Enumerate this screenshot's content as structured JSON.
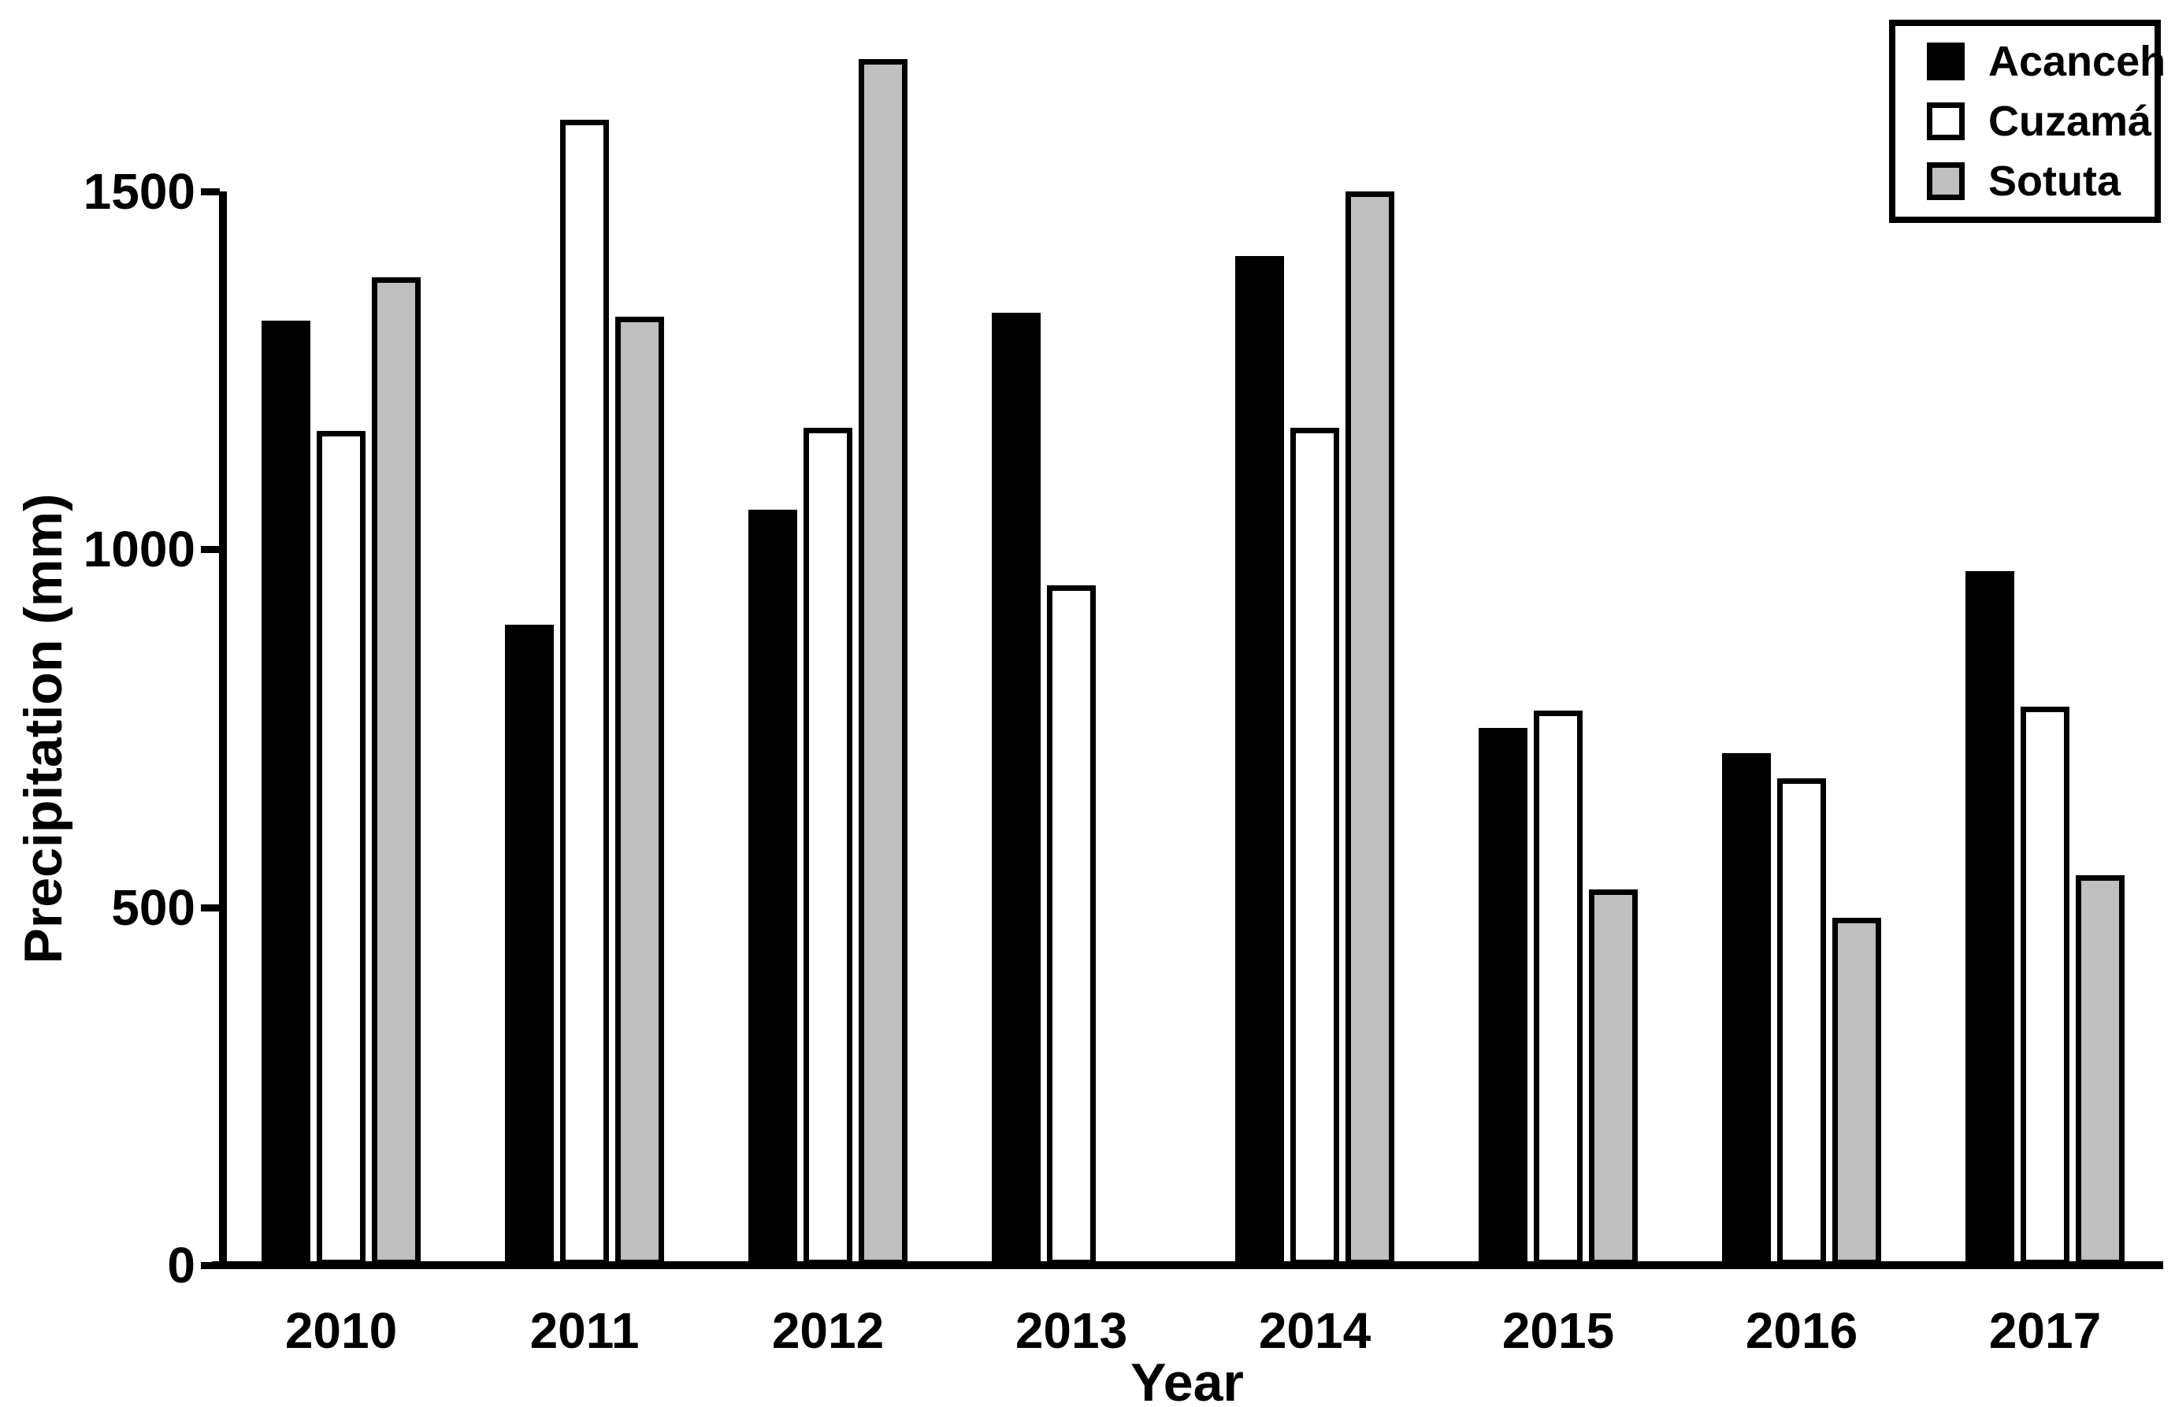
{
  "chart_data": {
    "type": "bar",
    "title": "",
    "xlabel": "Year",
    "ylabel": "Precipitation (mm)",
    "categories": [
      "2010",
      "2011",
      "2012",
      "2013",
      "2014",
      "2015",
      "2016",
      "2017"
    ],
    "series": [
      {
        "name": "Acanceh",
        "fill": "#000000",
        "values": [
          1320,
          895,
          1055,
          1330,
          1410,
          750,
          715,
          970
        ]
      },
      {
        "name": "Cuzamá",
        "fill": "#ffffff",
        "values": [
          1165,
          1600,
          1170,
          950,
          1170,
          775,
          680,
          780
        ]
      },
      {
        "name": "Sotuta",
        "fill": "#bfbfbf",
        "values": [
          1380,
          1325,
          1685,
          null,
          1500,
          525,
          485,
          545
        ]
      }
    ],
    "ylim": [
      0,
      1750
    ],
    "yticks": [
      0,
      500,
      1000,
      1500
    ],
    "bar_outline": "#000000",
    "legend_position": "top-right",
    "grid": false
  }
}
